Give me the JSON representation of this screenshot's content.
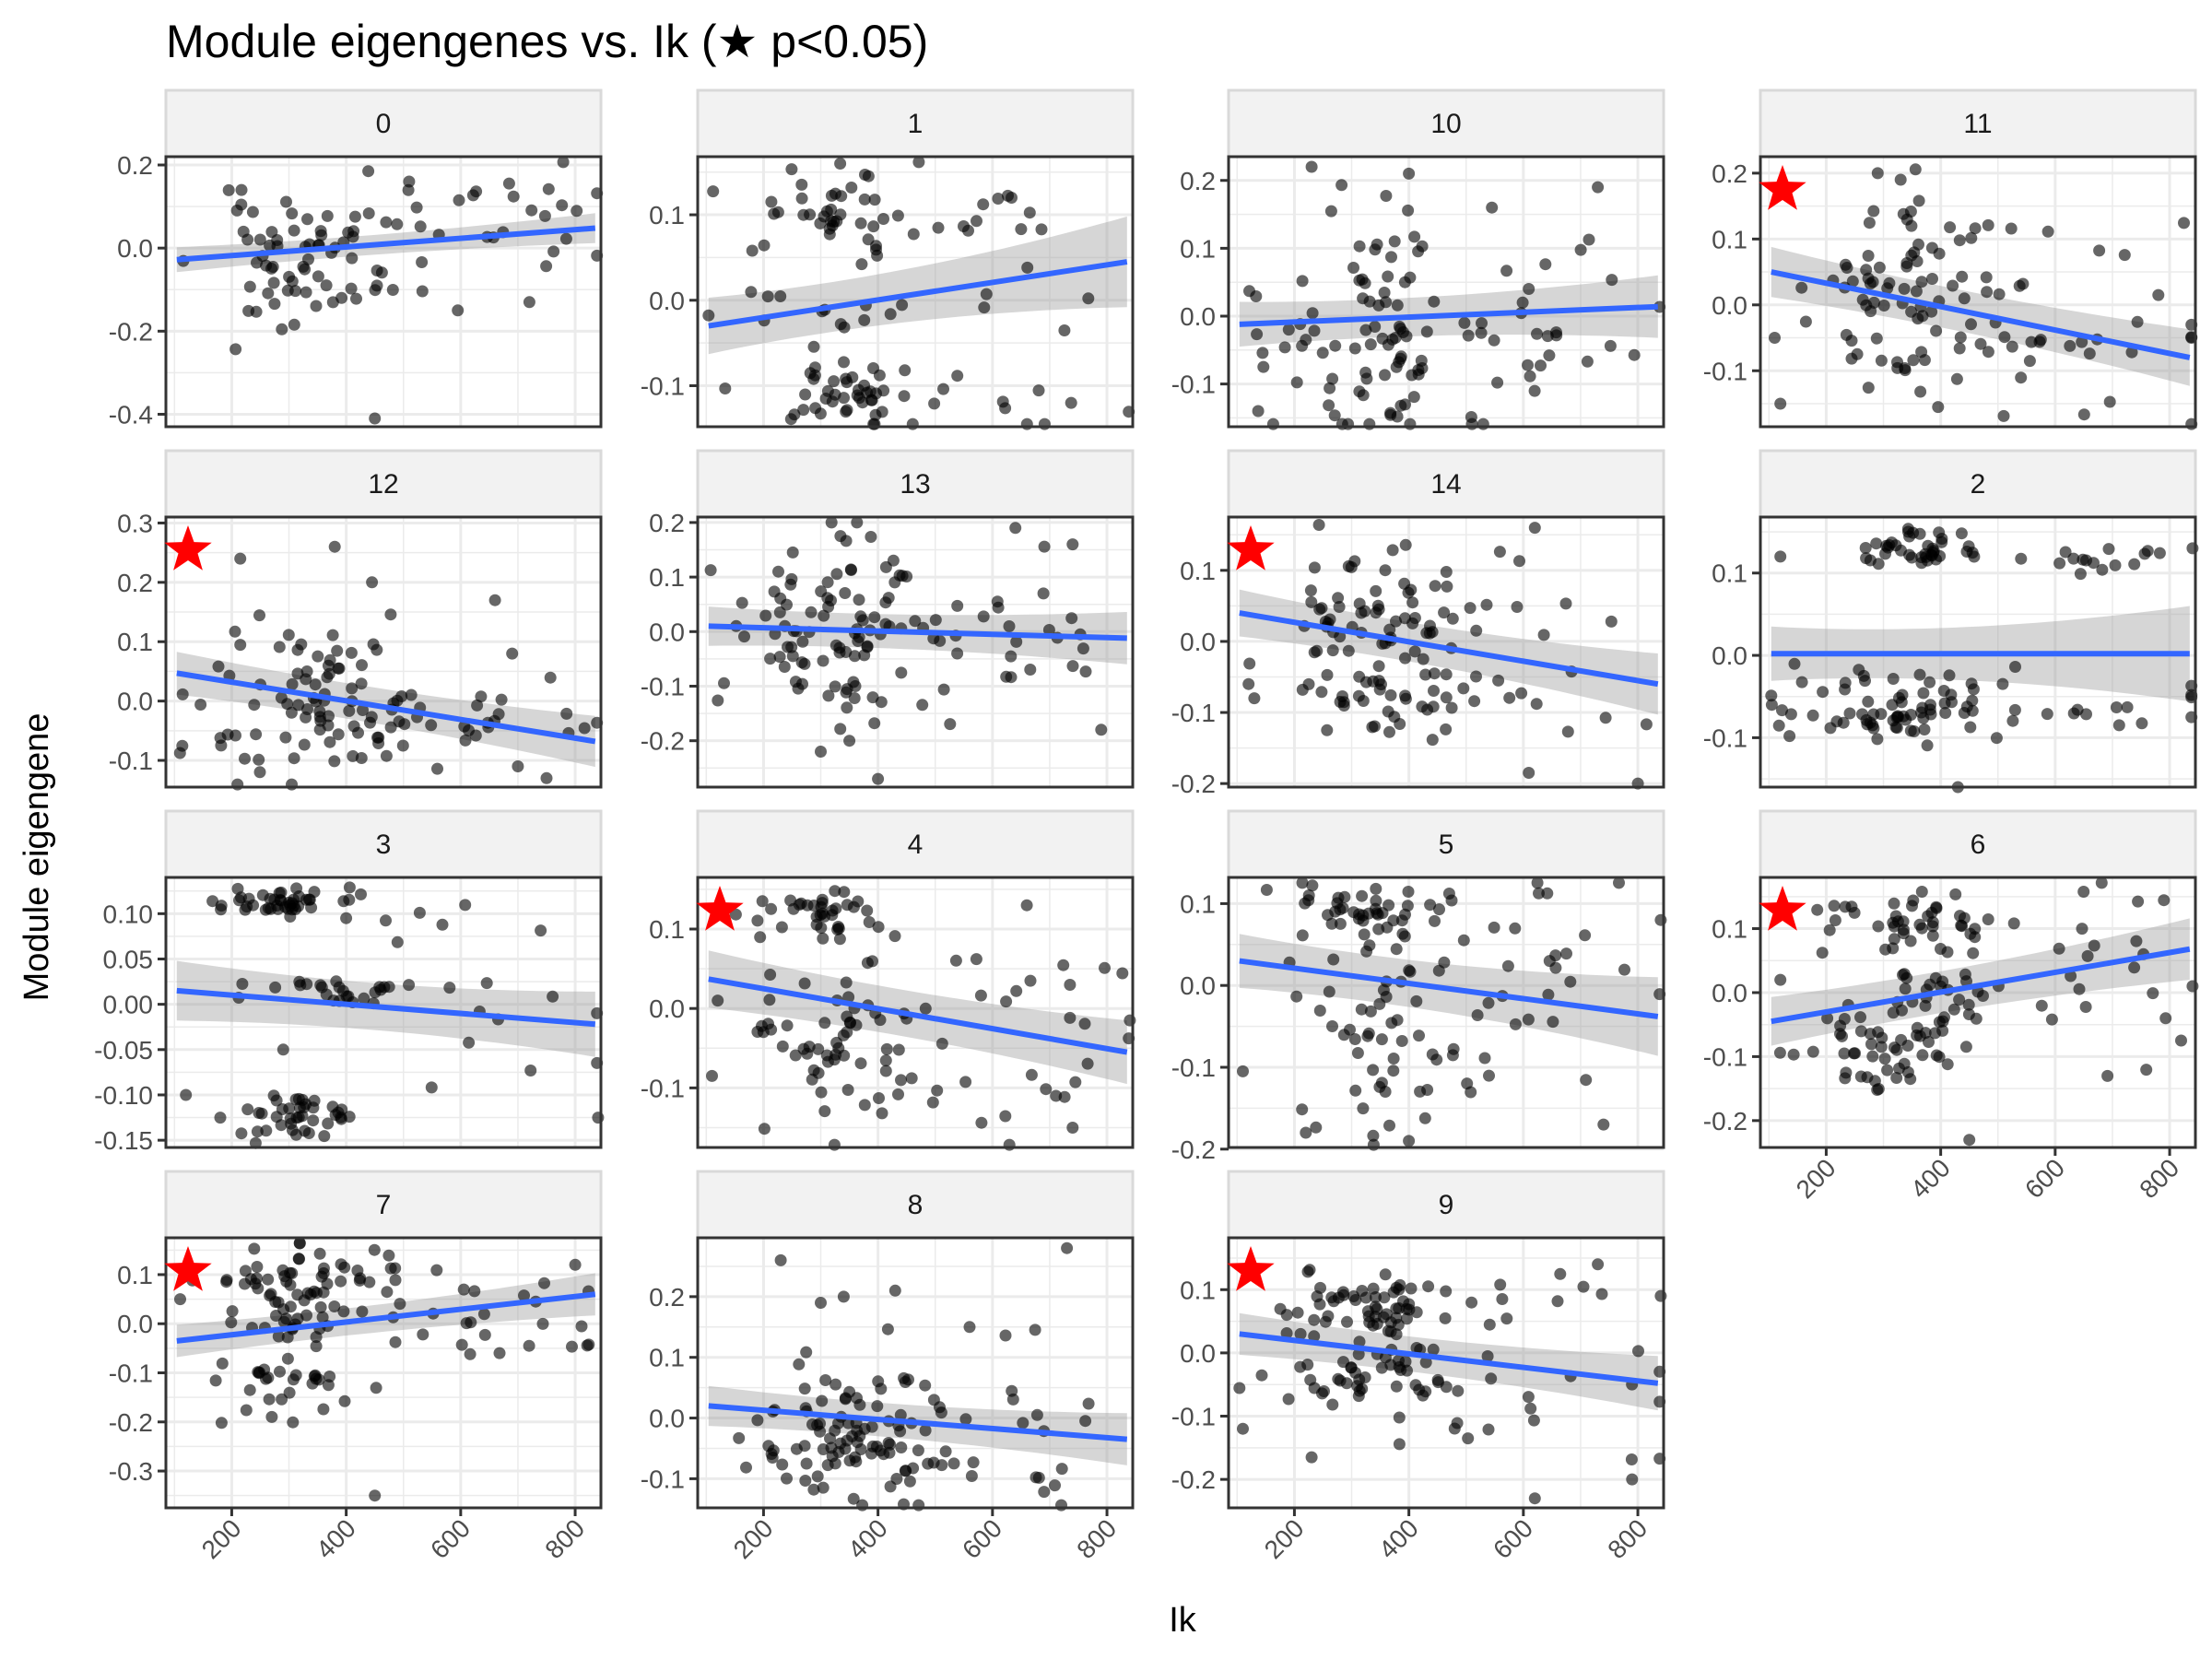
{
  "chart_data": {
    "type": "scatter",
    "title": "Module eigengenes vs. Ik  (★ p<0.05)",
    "xlabel": "Ik",
    "ylabel": "Module eigengene",
    "xlim": [
      85,
      845
    ],
    "x_ticks": [
      200,
      400,
      600,
      800
    ],
    "x_tick_labels": [
      "200",
      "400",
      "600",
      "800"
    ],
    "significance_marker": "★",
    "colors": {
      "point": "#000000",
      "fit_line": "#3366FF",
      "ribbon": "#999999",
      "star": "#FF0000",
      "strip_fill": "#F2F2F2",
      "strip_border": "#D9D9D9",
      "grid": "#EBEBEB",
      "panel_border": "#333333"
    },
    "panels": [
      {
        "label": "0",
        "ylim": [
          -0.43,
          0.22
        ],
        "y_ticks": [
          0.2,
          0.0,
          -0.2,
          -0.4
        ],
        "y_tick_labels": [
          "0.2",
          "0.0",
          "-0.2",
          "-0.4"
        ],
        "significant": false,
        "fit": {
          "y0": -0.028,
          "y1": 0.048,
          "se0": 0.022,
          "se1": 0.028
        },
        "seed": 11,
        "clusters": [
          {
            "n": 70,
            "xc": 340,
            "xs": 95,
            "yc": -0.03,
            "ys": 0.075
          },
          {
            "n": 25,
            "xc": 620,
            "xs": 130,
            "yc": 0.05,
            "ys": 0.07
          }
        ],
        "extra": [
          [
            450,
            -0.41
          ],
          [
            720,
            -0.13
          ],
          [
            595,
            -0.15
          ],
          [
            510,
            0.16
          ]
        ]
      },
      {
        "label": "1",
        "ylim": [
          -0.148,
          0.168
        ],
        "y_ticks": [
          0.1,
          0.0,
          -0.1
        ],
        "y_tick_labels": [
          "0.1",
          "0.0",
          "-0.1"
        ],
        "significant": false,
        "fit": {
          "y0": -0.03,
          "y1": 0.045,
          "se0": 0.025,
          "se1": 0.045
        },
        "seed": 22,
        "clusters": [
          {
            "n": 40,
            "xc": 330,
            "xs": 70,
            "yc": 0.11,
            "ys": 0.025
          },
          {
            "n": 40,
            "xc": 330,
            "xs": 75,
            "yc": -0.11,
            "ys": 0.018
          },
          {
            "n": 20,
            "xc": 280,
            "xs": 90,
            "yc": -0.02,
            "ys": 0.04
          },
          {
            "n": 25,
            "xc": 600,
            "xs": 130,
            "yc": 0.0,
            "ys": 0.085
          }
        ],
        "extra": []
      },
      {
        "label": "10",
        "ylim": [
          -0.163,
          0.235
        ],
        "y_ticks": [
          0.2,
          0.1,
          0.0,
          -0.1
        ],
        "y_tick_labels": [
          "0.2",
          "0.1",
          "0.0",
          "-0.1"
        ],
        "significant": false,
        "fit": {
          "y0": -0.012,
          "y1": 0.014,
          "se0": 0.025,
          "se1": 0.038
        },
        "seed": 33,
        "clusters": [
          {
            "n": 85,
            "xc": 320,
            "xs": 90,
            "yc": -0.03,
            "ys": 0.085
          },
          {
            "n": 30,
            "xc": 620,
            "xs": 130,
            "yc": -0.02,
            "ys": 0.085
          }
        ],
        "extra": [
          [
            230,
            0.22
          ],
          [
            400,
            0.21
          ],
          [
            730,
            0.19
          ],
          [
            545,
            0.16
          ]
        ]
      },
      {
        "label": "11",
        "ylim": [
          -0.185,
          0.225
        ],
        "y_ticks": [
          0.2,
          0.1,
          0.0,
          -0.1
        ],
        "y_tick_labels": [
          "0.2",
          "0.1",
          "0.0",
          "-0.1"
        ],
        "significant": true,
        "fit": {
          "y0": 0.05,
          "y1": -0.08,
          "se0": 0.03,
          "se1": 0.035
        },
        "seed": 44,
        "clusters": [
          {
            "n": 80,
            "xc": 330,
            "xs": 90,
            "yc": 0.01,
            "ys": 0.08
          },
          {
            "n": 30,
            "xc": 620,
            "xs": 130,
            "yc": -0.04,
            "ys": 0.07
          }
        ],
        "extra": [
          [
            120,
            -0.15
          ],
          [
            110,
            -0.05
          ],
          [
            290,
            0.2
          ],
          [
            330,
            0.19
          ]
        ]
      },
      {
        "label": "12",
        "ylim": [
          -0.145,
          0.31
        ],
        "y_ticks": [
          0.3,
          0.2,
          0.1,
          0.0,
          -0.1
        ],
        "y_tick_labels": [
          "0.3",
          "0.2",
          "0.1",
          "0.0",
          "-0.1"
        ],
        "significant": true,
        "fit": {
          "y0": 0.047,
          "y1": -0.068,
          "se0": 0.028,
          "se1": 0.035
        },
        "seed": 55,
        "clusters": [
          {
            "n": 85,
            "xc": 330,
            "xs": 90,
            "yc": 0.0,
            "ys": 0.07
          },
          {
            "n": 25,
            "xc": 620,
            "xs": 130,
            "yc": -0.05,
            "ys": 0.04
          }
        ],
        "extra": [
          [
            215,
            0.24
          ],
          [
            380,
            0.26
          ],
          [
            445,
            0.2
          ],
          [
            660,
            0.17
          ],
          [
            690,
            0.08
          ],
          [
            750,
            -0.13
          ],
          [
            700,
            -0.11
          ]
        ]
      },
      {
        "label": "13",
        "ylim": [
          -0.285,
          0.21
        ],
        "y_ticks": [
          0.2,
          0.1,
          0.0,
          -0.1,
          -0.2
        ],
        "y_tick_labels": [
          "0.2",
          "0.1",
          "0.0",
          "-0.1",
          "-0.2"
        ],
        "significant": false,
        "fit": {
          "y0": 0.01,
          "y1": -0.012,
          "se0": 0.028,
          "se1": 0.04
        },
        "seed": 66,
        "clusters": [
          {
            "n": 90,
            "xc": 330,
            "xs": 85,
            "yc": 0.0,
            "ys": 0.07
          },
          {
            "n": 30,
            "xc": 620,
            "xs": 130,
            "yc": 0.0,
            "ys": 0.07
          }
        ],
        "extra": [
          [
            400,
            -0.27
          ],
          [
            350,
            -0.2
          ],
          [
            300,
            -0.22
          ],
          [
            790,
            -0.18
          ],
          [
            640,
            0.19
          ],
          [
            740,
            0.16
          ]
        ]
      },
      {
        "label": "14",
        "ylim": [
          -0.205,
          0.175
        ],
        "y_ticks": [
          0.1,
          0.0,
          -0.1,
          -0.2
        ],
        "y_tick_labels": [
          "0.1",
          "0.0",
          "-0.1",
          "-0.2"
        ],
        "significant": true,
        "fit": {
          "y0": 0.04,
          "y1": -0.06,
          "se0": 0.025,
          "se1": 0.035
        },
        "seed": 77,
        "clusters": [
          {
            "n": 55,
            "xc": 330,
            "xs": 80,
            "yc": 0.05,
            "ys": 0.045
          },
          {
            "n": 40,
            "xc": 350,
            "xs": 90,
            "yc": -0.08,
            "ys": 0.05
          },
          {
            "n": 25,
            "xc": 620,
            "xs": 130,
            "yc": -0.03,
            "ys": 0.07
          }
        ],
        "extra": [
          [
            620,
            0.16
          ],
          [
            800,
            -0.2
          ],
          [
            120,
            -0.06
          ],
          [
            130,
            -0.08
          ]
        ]
      },
      {
        "label": "2",
        "ylim": [
          -0.16,
          0.168
        ],
        "y_ticks": [
          0.1,
          0.0,
          -0.1
        ],
        "y_tick_labels": [
          "0.1",
          "0.0",
          "-0.1"
        ],
        "significant": false,
        "fit": {
          "y0": 0.002,
          "y1": 0.002,
          "se0": 0.025,
          "se1": 0.05
        },
        "seed": 88,
        "clusters": [
          {
            "n": 40,
            "xc": 360,
            "xs": 45,
            "yc": 0.13,
            "ys": 0.012
          },
          {
            "n": 70,
            "xc": 340,
            "xs": 95,
            "yc": -0.06,
            "ys": 0.022
          },
          {
            "n": 15,
            "xc": 680,
            "xs": 90,
            "yc": 0.115,
            "ys": 0.01
          },
          {
            "n": 15,
            "xc": 650,
            "xs": 110,
            "yc": -0.06,
            "ys": 0.02
          }
        ],
        "extra": [
          [
            120,
            0.12
          ],
          [
            105,
            -0.06
          ],
          [
            430,
            -0.16
          ],
          [
            840,
            0.13
          ]
        ]
      },
      {
        "label": "3",
        "ylim": [
          -0.158,
          0.14
        ],
        "y_ticks": [
          0.1,
          0.05,
          0.0,
          -0.05,
          -0.1,
          -0.15
        ],
        "y_tick_labels": [
          "0.10",
          "0.05",
          "0.00",
          "-0.05",
          "-0.10",
          "-0.15"
        ],
        "significant": false,
        "fit": {
          "y0": 0.015,
          "y1": -0.022,
          "se0": 0.025,
          "se1": 0.028
        },
        "seed": 99,
        "clusters": [
          {
            "n": 45,
            "xc": 300,
            "xs": 70,
            "yc": 0.11,
            "ys": 0.008
          },
          {
            "n": 40,
            "xc": 330,
            "xs": 60,
            "yc": -0.125,
            "ys": 0.012
          },
          {
            "n": 25,
            "xc": 350,
            "xs": 90,
            "yc": 0.015,
            "ys": 0.008
          },
          {
            "n": 15,
            "xc": 620,
            "xs": 120,
            "yc": 0.0,
            "ys": 0.08
          }
        ],
        "extra": [
          [
            180,
            -0.125
          ],
          [
            120,
            -0.1
          ],
          [
            290,
            -0.05
          ],
          [
            840,
            -0.125
          ],
          [
            400,
            0.095
          ]
        ]
      },
      {
        "label": "4",
        "ylim": [
          -0.175,
          0.165
        ],
        "y_ticks": [
          0.1,
          0.0,
          -0.1
        ],
        "y_tick_labels": [
          "0.1",
          "0.0",
          "-0.1"
        ],
        "significant": true,
        "fit": {
          "y0": 0.037,
          "y1": -0.055,
          "se0": 0.028,
          "se1": 0.032
        },
        "seed": 111,
        "clusters": [
          {
            "n": 40,
            "xc": 300,
            "xs": 80,
            "yc": 0.12,
            "ys": 0.015
          },
          {
            "n": 60,
            "xc": 350,
            "xs": 90,
            "yc": -0.05,
            "ys": 0.06
          },
          {
            "n": 25,
            "xc": 620,
            "xs": 130,
            "yc": -0.02,
            "ys": 0.06
          }
        ],
        "extra": [
          [
            110,
            -0.085
          ],
          [
            120,
            0.01
          ],
          [
            740,
            -0.15
          ],
          [
            660,
            0.13
          ],
          [
            840,
            -0.015
          ]
        ]
      },
      {
        "label": "5",
        "ylim": [
          -0.198,
          0.132
        ],
        "y_ticks": [
          0.1,
          0.0,
          -0.1,
          -0.2
        ],
        "y_tick_labels": [
          "0.1",
          "0.0",
          "-0.1",
          "-0.2"
        ],
        "significant": false,
        "fit": {
          "y0": 0.03,
          "y1": -0.038,
          "se0": 0.025,
          "se1": 0.04
        },
        "seed": 122,
        "clusters": [
          {
            "n": 45,
            "xc": 330,
            "xs": 70,
            "yc": 0.09,
            "ys": 0.02
          },
          {
            "n": 50,
            "xc": 360,
            "xs": 90,
            "yc": -0.06,
            "ys": 0.06
          },
          {
            "n": 30,
            "xc": 620,
            "xs": 130,
            "yc": 0.0,
            "ys": 0.08
          }
        ],
        "extra": [
          [
            110,
            -0.105
          ],
          [
            220,
            -0.18
          ],
          [
            400,
            -0.19
          ],
          [
            840,
            0.08
          ],
          [
            740,
            -0.17
          ]
        ]
      },
      {
        "label": "6",
        "ylim": [
          -0.242,
          0.18
        ],
        "y_ticks": [
          0.1,
          0.0,
          -0.1,
          -0.2
        ],
        "y_tick_labels": [
          "0.1",
          "0.0",
          "-0.1",
          "-0.2"
        ],
        "significant": true,
        "fit": {
          "y0": -0.045,
          "y1": 0.068,
          "se0": 0.03,
          "se1": 0.04
        },
        "seed": 133,
        "clusters": [
          {
            "n": 45,
            "xc": 360,
            "xs": 80,
            "yc": 0.11,
            "ys": 0.025
          },
          {
            "n": 50,
            "xc": 300,
            "xs": 80,
            "yc": -0.09,
            "ys": 0.03
          },
          {
            "n": 25,
            "xc": 380,
            "xs": 60,
            "yc": 0.0,
            "ys": 0.03
          },
          {
            "n": 25,
            "xc": 620,
            "xs": 130,
            "yc": 0.05,
            "ys": 0.08
          }
        ],
        "extra": [
          [
            120,
            0.02
          ],
          [
            450,
            -0.23
          ],
          [
            840,
            0.01
          ],
          [
            820,
            -0.075
          ]
        ]
      },
      {
        "label": "7",
        "ylim": [
          -0.375,
          0.175
        ],
        "y_ticks": [
          0.1,
          0.0,
          -0.1,
          -0.2,
          -0.3
        ],
        "y_tick_labels": [
          "0.1",
          "0.0",
          "-0.1",
          "-0.2",
          "-0.3"
        ],
        "significant": true,
        "fit": {
          "y0": -0.035,
          "y1": 0.06,
          "se0": 0.025,
          "se1": 0.035
        },
        "seed": 144,
        "clusters": [
          {
            "n": 75,
            "xc": 330,
            "xs": 85,
            "yc": 0.05,
            "ys": 0.055
          },
          {
            "n": 30,
            "xc": 300,
            "xs": 80,
            "yc": -0.12,
            "ys": 0.04
          },
          {
            "n": 25,
            "xc": 620,
            "xs": 130,
            "yc": 0.03,
            "ys": 0.06
          }
        ],
        "extra": [
          [
            450,
            -0.35
          ],
          [
            270,
            -0.19
          ],
          [
            110,
            0.05
          ],
          [
            800,
            0.12
          ]
        ]
      },
      {
        "label": "8",
        "ylim": [
          -0.148,
          0.297
        ],
        "y_ticks": [
          0.2,
          0.1,
          0.0,
          -0.1
        ],
        "y_tick_labels": [
          "0.2",
          "0.1",
          "0.0",
          "-0.1"
        ],
        "significant": false,
        "fit": {
          "y0": 0.02,
          "y1": -0.035,
          "se0": 0.025,
          "se1": 0.035
        },
        "seed": 155,
        "clusters": [
          {
            "n": 90,
            "xc": 340,
            "xs": 85,
            "yc": -0.03,
            "ys": 0.06
          },
          {
            "n": 30,
            "xc": 620,
            "xs": 130,
            "yc": -0.03,
            "ys": 0.07
          }
        ],
        "extra": [
          [
            230,
            0.26
          ],
          [
            730,
            0.28
          ],
          [
            430,
            0.21
          ],
          [
            560,
            0.15
          ],
          [
            340,
            0.2
          ],
          [
            300,
            0.19
          ]
        ]
      },
      {
        "label": "9",
        "ylim": [
          -0.245,
          0.182
        ],
        "y_ticks": [
          0.1,
          0.0,
          -0.1,
          -0.2
        ],
        "y_tick_labels": [
          "0.1",
          "0.0",
          "-0.1",
          "-0.2"
        ],
        "significant": true,
        "fit": {
          "y0": 0.03,
          "y1": -0.048,
          "se0": 0.025,
          "se1": 0.035
        },
        "seed": 166,
        "clusters": [
          {
            "n": 55,
            "xc": 330,
            "xs": 70,
            "yc": 0.075,
            "ys": 0.025
          },
          {
            "n": 50,
            "xc": 320,
            "xs": 90,
            "yc": -0.03,
            "ys": 0.03
          },
          {
            "n": 30,
            "xc": 620,
            "xs": 130,
            "yc": -0.05,
            "ys": 0.09
          }
        ],
        "extra": [
          [
            620,
            -0.23
          ],
          [
            110,
            -0.12
          ],
          [
            790,
            -0.2
          ],
          [
            840,
            0.09
          ],
          [
            730,
            0.14
          ],
          [
            230,
            -0.165
          ]
        ]
      }
    ]
  }
}
